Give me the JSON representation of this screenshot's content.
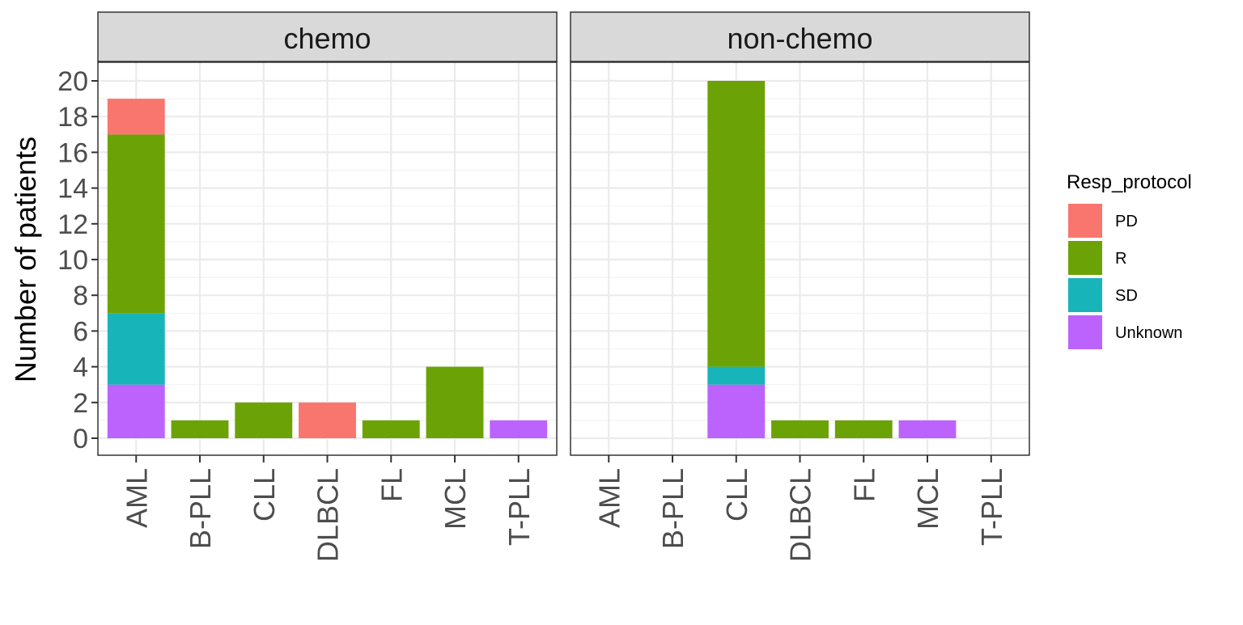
{
  "chart_data": {
    "type": "bar",
    "stacked": true,
    "ylabel": "Number of patients",
    "xlabel": "",
    "ylim": [
      0,
      20
    ],
    "yticks": [
      0,
      2,
      4,
      6,
      8,
      10,
      12,
      14,
      16,
      18,
      20
    ],
    "grid": true,
    "legend": {
      "title": "Resp_protocol",
      "placement": "right",
      "entries": [
        "PD",
        "R",
        "SD",
        "Unknown"
      ]
    },
    "colors": {
      "PD": "#F8766D",
      "R": "#6BA306",
      "SD": "#17B4B9",
      "Unknown": "#BC63FD"
    },
    "categories": [
      "AML",
      "B-PLL",
      "CLL",
      "DLBCL",
      "FL",
      "MCL",
      "T-PLL"
    ],
    "facets": [
      {
        "label": "chemo",
        "series": [
          {
            "name": "Unknown",
            "values": [
              3,
              0,
              0,
              0,
              0,
              0,
              1
            ]
          },
          {
            "name": "SD",
            "values": [
              4,
              0,
              0,
              0,
              0,
              0,
              0
            ]
          },
          {
            "name": "R",
            "values": [
              10,
              1,
              2,
              0,
              1,
              4,
              0
            ]
          },
          {
            "name": "PD",
            "values": [
              2,
              0,
              0,
              2,
              0,
              0,
              0
            ]
          }
        ]
      },
      {
        "label": "non-chemo",
        "series": [
          {
            "name": "Unknown",
            "values": [
              0,
              0,
              3,
              0,
              0,
              1,
              0
            ]
          },
          {
            "name": "SD",
            "values": [
              0,
              0,
              1,
              0,
              0,
              0,
              0
            ]
          },
          {
            "name": "R",
            "values": [
              0,
              0,
              16,
              1,
              1,
              0,
              0
            ]
          },
          {
            "name": "PD",
            "values": [
              0,
              0,
              0,
              0,
              0,
              0,
              0
            ]
          }
        ]
      }
    ]
  }
}
